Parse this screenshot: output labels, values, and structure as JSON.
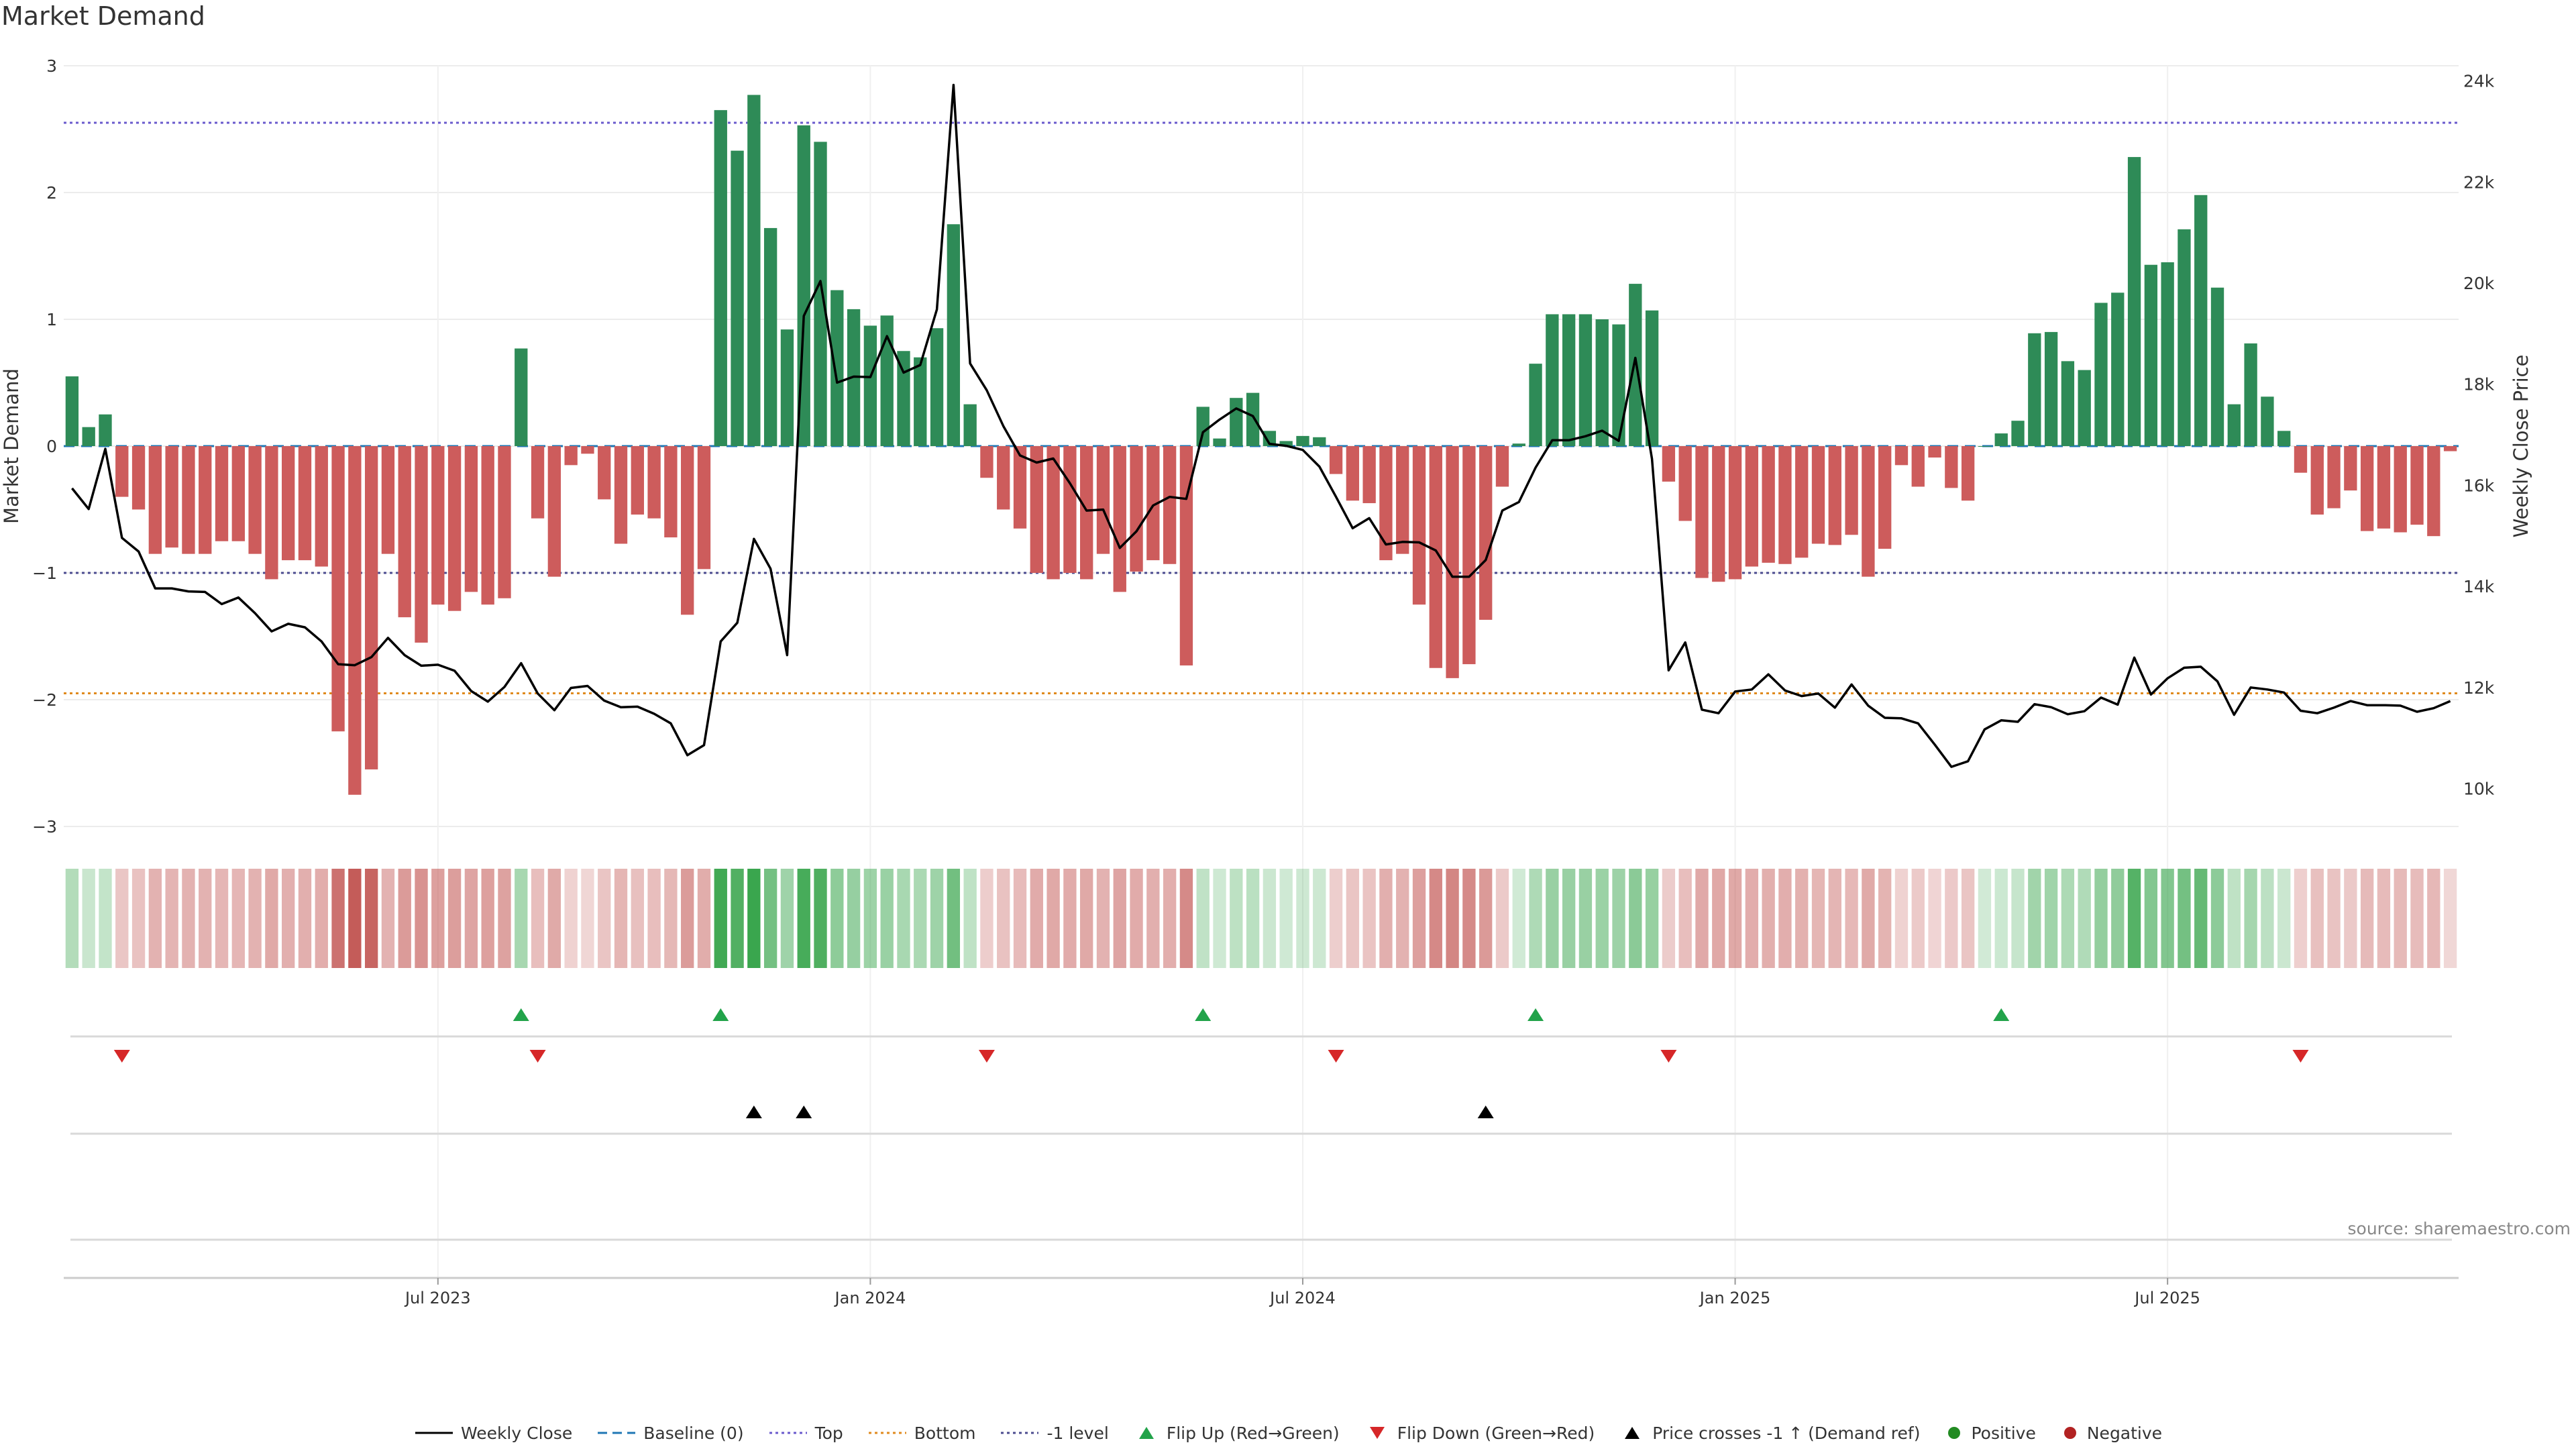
{
  "title": "Market Demand",
  "source": "source: sharemaestro.com",
  "chart_data": {
    "type": "bar",
    "title": "Market Demand",
    "ylabel": "Market Demand",
    "y2label": "Weekly Close Price",
    "ylim": [
      -3,
      3
    ],
    "y2lim": [
      9250,
      24300
    ],
    "yticks": [
      "3",
      "2",
      "1",
      "0",
      "−1",
      "−2",
      "−3"
    ],
    "y2ticks": [
      "24k",
      "22k",
      "20k",
      "18k",
      "16k",
      "14k",
      "12k",
      "10k"
    ],
    "xtick_labels": [
      "Jul 2023",
      "Jan 2024",
      "Jul 2024",
      "Jan 2025",
      "Jul 2025"
    ],
    "xtick_index": [
      22,
      48,
      74,
      100,
      126
    ],
    "reference_lines": {
      "top": 2.55,
      "bottom": -1.95,
      "minus_one": -1.0,
      "baseline": 0
    },
    "demand": [
      0.55,
      0.15,
      0.25,
      -0.4,
      -0.5,
      -0.85,
      -0.8,
      -0.85,
      -0.85,
      -0.75,
      -0.75,
      -0.85,
      -1.05,
      -0.9,
      -0.9,
      -0.95,
      -2.25,
      -2.75,
      -2.55,
      -0.85,
      -1.35,
      -1.55,
      -1.25,
      -1.3,
      -1.15,
      -1.25,
      -1.2,
      0.77,
      -0.57,
      -1.03,
      -0.15,
      -0.06,
      -0.42,
      -0.77,
      -0.54,
      -0.57,
      -0.72,
      -1.33,
      -0.97,
      2.65,
      2.33,
      2.77,
      1.72,
      0.92,
      2.53,
      2.4,
      1.23,
      1.08,
      0.95,
      1.03,
      0.75,
      0.7,
      0.93,
      1.75,
      0.33,
      -0.25,
      -0.5,
      -0.65,
      -1.0,
      -1.05,
      -1.0,
      -1.05,
      -0.85,
      -1.15,
      -0.99,
      -0.9,
      -0.93,
      -1.73,
      0.31,
      0.06,
      0.38,
      0.42,
      0.12,
      0.04,
      0.08,
      0.07,
      -0.22,
      -0.43,
      -0.45,
      -0.9,
      -0.85,
      -1.25,
      -1.75,
      -1.83,
      -1.72,
      -1.37,
      -0.32,
      0.02,
      0.65,
      1.04,
      1.04,
      1.04,
      1.0,
      0.96,
      1.28,
      1.07,
      -0.28,
      -0.59,
      -1.04,
      -1.07,
      -1.05,
      -0.95,
      -0.92,
      -0.93,
      -0.88,
      -0.77,
      -0.78,
      -0.7,
      -1.03,
      -0.81,
      -0.15,
      -0.32,
      -0.09,
      -0.33,
      -0.43,
      0.0,
      0.1,
      0.2,
      0.89,
      0.9,
      0.67,
      0.6,
      1.13,
      1.21,
      2.28,
      1.43,
      1.45,
      1.71,
      1.98,
      1.25,
      0.33,
      0.81,
      0.39,
      0.12,
      -0.21,
      -0.54,
      -0.49,
      -0.35,
      -0.67,
      -0.65,
      -0.68,
      -0.62,
      -0.71,
      -0.04
    ],
    "weekly_close": [
      15940,
      15530,
      16720,
      14960,
      14690,
      13960,
      13960,
      13900,
      13890,
      13650,
      13780,
      13470,
      13110,
      13260,
      13190,
      12910,
      12460,
      12440,
      12600,
      12980,
      12640,
      12430,
      12450,
      12330,
      11930,
      11720,
      12010,
      12480,
      11880,
      11550,
      11990,
      12030,
      11740,
      11610,
      11620,
      11480,
      11290,
      10660,
      10860,
      12910,
      13280,
      14940,
      14350,
      12640,
      19350,
      20040,
      18030,
      18150,
      18140,
      18950,
      18230,
      18380,
      19480,
      23920,
      18410,
      17880,
      17170,
      16590,
      16450,
      16530,
      16040,
      15500,
      15520,
      14760,
      15090,
      15600,
      15770,
      15730,
      17050,
      17300,
      17520,
      17370,
      16820,
      16780,
      16700,
      16370,
      15770,
      15150,
      15350,
      14830,
      14880,
      14870,
      14710,
      14190,
      14190,
      14520,
      15500,
      15670,
      16350,
      16890,
      16890,
      16970,
      17080,
      16880,
      18520,
      16520,
      12340,
      12890,
      11560,
      11490,
      11920,
      11960,
      12260,
      11940,
      11830,
      11880,
      11600,
      12060,
      11640,
      11400,
      11390,
      11290,
      10870,
      10430,
      10540,
      11170,
      11350,
      11320,
      11670,
      11610,
      11470,
      11530,
      11800,
      11660,
      12590,
      11860,
      12180,
      12390,
      12410,
      12120,
      11460,
      12000,
      11960,
      11900,
      11540,
      11490,
      11600,
      11730,
      11650,
      11650,
      11640,
      11520,
      11590,
      11730
    ],
    "flip_up_index": [
      27,
      39,
      68,
      88,
      116
    ],
    "flip_down_index": [
      3,
      28,
      55,
      76,
      96,
      134
    ],
    "price_cross_index": [
      41,
      44,
      85
    ]
  },
  "legend": {
    "weekly_close": "Weekly Close",
    "baseline": "Baseline (0)",
    "top": "Top",
    "bottom": "Bottom",
    "minus_one": "-1 level",
    "flip_up": "Flip Up (Red→Green)",
    "flip_down": "Flip Down (Green→Red)",
    "price_cross": "Price crosses -1 ↑ (Demand ref)",
    "positive": "Positive",
    "negative": "Negative"
  },
  "colors": {
    "positive": "#2e8b57",
    "negative": "#cd5c5c",
    "price_line": "#000000",
    "top_line": "#6a5acd",
    "bottom_line": "#e08a1e",
    "minus_one_line": "#4b4b8f",
    "baseline": "#1f77b4",
    "flip_up": "#22a34a",
    "flip_down": "#d62728",
    "price_cross": "#000000",
    "positive_dot": "#228b22",
    "negative_dot": "#b22222"
  }
}
